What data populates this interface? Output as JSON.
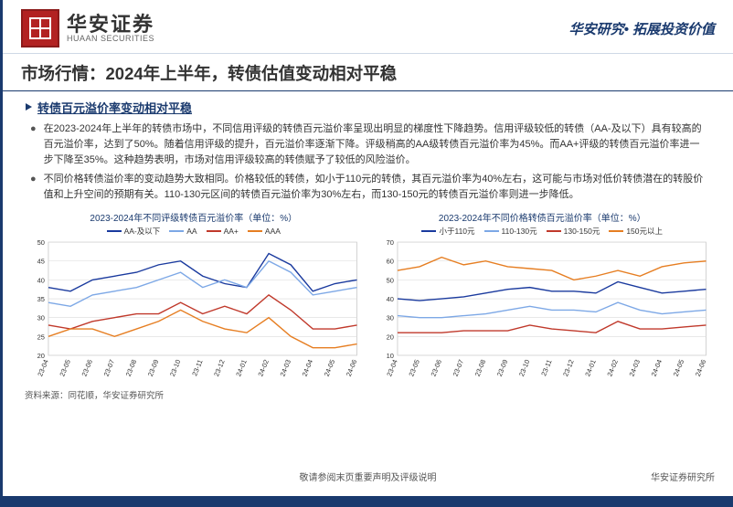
{
  "header": {
    "logo_cn": "华安证券",
    "logo_en": "HUAAN SECURITIES",
    "tagline": "华安研究• 拓展投资价值"
  },
  "title": "市场行情：2024年上半年，转债估值变动相对平稳",
  "subhead": "转债百元溢价率变动相对平稳",
  "bullets": [
    "在2023-2024年上半年的转债市场中，不同信用评级的转债百元溢价率呈现出明显的梯度性下降趋势。信用评级较低的转债（AA-及以下）具有较高的百元溢价率，达到了50%。随着信用评级的提升，百元溢价率逐渐下降。评级稍高的AA级转债百元溢价率为45%。而AA+评级的转债百元溢价率进一步下降至35%。这种趋势表明，市场对信用评级较高的转债赋予了较低的风险溢价。",
    "不同价格转债溢价率的变动趋势大致相同。价格较低的转债，如小于110元的转债，其百元溢价率为40%左右，这可能与市场对低价转债潜在的转股价值和上升空间的预期有关。110-130元区间的转债百元溢价率为30%左右，而130-150元的转债百元溢价率则进一步降低。"
  ],
  "chart_left": {
    "title": "2023-2024年不同评级转债百元溢价率（单位：%）",
    "type": "line",
    "background_color": "#ffffff",
    "border_color": "#c8c8c8",
    "grid_color": "#d9d9d9",
    "y_axis": {
      "min": 20,
      "max": 50,
      "step": 5
    },
    "x_labels": [
      "23-04",
      "23-05",
      "23-06",
      "23-07",
      "23-08",
      "23-09",
      "23-10",
      "23-11",
      "23-12",
      "24-01",
      "24-02",
      "24-03",
      "24-04",
      "24-05",
      "24-06"
    ],
    "label_fontsize": 7.5,
    "line_width": 1.4,
    "legend_pos": "top-center",
    "series": [
      {
        "name": "AA-及以下",
        "color": "#1a3a9e",
        "values": [
          38,
          37,
          40,
          41,
          42,
          44,
          45,
          41,
          39,
          38,
          47,
          44,
          37,
          39,
          40
        ]
      },
      {
        "name": "AA",
        "color": "#7da8e6",
        "values": [
          34,
          33,
          36,
          37,
          38,
          40,
          42,
          38,
          40,
          38,
          45,
          42,
          36,
          37,
          38
        ]
      },
      {
        "name": "AA+",
        "color": "#c0392b",
        "values": [
          28,
          27,
          29,
          30,
          31,
          31,
          34,
          31,
          33,
          31,
          36,
          32,
          27,
          27,
          28
        ]
      },
      {
        "name": "AAA",
        "color": "#e67e22",
        "values": [
          25,
          27,
          27,
          25,
          27,
          29,
          32,
          29,
          27,
          26,
          30,
          25,
          22,
          22,
          23
        ]
      }
    ]
  },
  "chart_right": {
    "title": "2023-2024年不同价格转债百元溢价率（单位：%）",
    "type": "line",
    "background_color": "#ffffff",
    "border_color": "#c8c8c8",
    "grid_color": "#d9d9d9",
    "y_axis": {
      "min": 10,
      "max": 70,
      "step": 10
    },
    "x_labels": [
      "23-04",
      "23-05",
      "23-06",
      "23-07",
      "23-08",
      "23-09",
      "23-10",
      "23-11",
      "23-12",
      "24-01",
      "24-02",
      "24-03",
      "24-04",
      "24-05",
      "24-06"
    ],
    "label_fontsize": 7.5,
    "line_width": 1.4,
    "legend_pos": "top-center",
    "series": [
      {
        "name": "小于110元",
        "color": "#1a3a9e",
        "values": [
          40,
          39,
          40,
          41,
          43,
          45,
          46,
          44,
          44,
          43,
          49,
          46,
          43,
          44,
          45
        ]
      },
      {
        "name": "110-130元",
        "color": "#7da8e6",
        "values": [
          31,
          30,
          30,
          31,
          32,
          34,
          36,
          34,
          34,
          33,
          38,
          34,
          32,
          33,
          34
        ]
      },
      {
        "name": "130-150元",
        "color": "#c0392b",
        "values": [
          22,
          22,
          22,
          23,
          23,
          23,
          26,
          24,
          23,
          22,
          28,
          24,
          24,
          25,
          26
        ]
      },
      {
        "name": "150元以上",
        "color": "#e67e22",
        "values": [
          55,
          57,
          62,
          58,
          60,
          57,
          56,
          55,
          50,
          52,
          55,
          52,
          57,
          59,
          60
        ]
      }
    ]
  },
  "source": "资料来源：同花顺，华安证券研究所",
  "footer_center": "敬请参阅末页重要声明及评级说明",
  "footer_right": "华安证券研究所"
}
